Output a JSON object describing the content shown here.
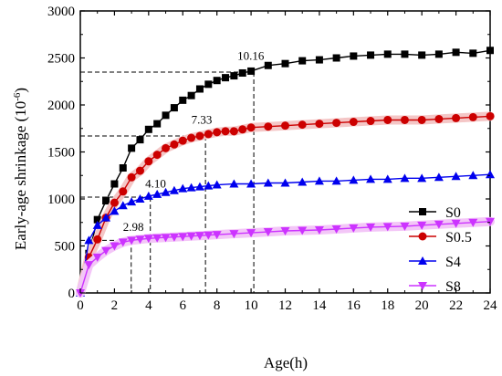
{
  "chart_data": {
    "type": "line",
    "xlabel": "Age(h)",
    "ylabel": "Early-age shrinkage (10",
    "ylabel_sup": "-6",
    "ylabel_close": ")",
    "xlim": [
      0,
      24
    ],
    "ylim": [
      0,
      3000
    ],
    "xticks": [
      0,
      2,
      4,
      6,
      8,
      10,
      12,
      14,
      16,
      18,
      20,
      22,
      24
    ],
    "yticks": [
      0,
      500,
      1000,
      1500,
      2000,
      2500,
      3000
    ],
    "xtick_labels": [
      "0",
      "2",
      "4",
      "6",
      "8",
      "10",
      "12",
      "14",
      "16",
      "18",
      "20",
      "22",
      "24"
    ],
    "ytick_labels": [
      "0",
      "500",
      "1000",
      "1500",
      "2000",
      "2500",
      "3000"
    ],
    "legend_position": "bottom-right",
    "series": [
      {
        "name": "S0",
        "color": "#000000",
        "marker": "square",
        "x": [
          0,
          0.5,
          1,
          1.5,
          2,
          2.5,
          3,
          3.5,
          4,
          4.5,
          5,
          5.5,
          6,
          6.5,
          7,
          7.5,
          8,
          8.5,
          9,
          9.5,
          10,
          11,
          12,
          13,
          14,
          15,
          16,
          17,
          18,
          19,
          20,
          21,
          22,
          23,
          24
        ],
        "y": [
          0,
          420,
          780,
          980,
          1160,
          1330,
          1540,
          1630,
          1740,
          1800,
          1890,
          1970,
          2050,
          2100,
          2170,
          2220,
          2260,
          2290,
          2310,
          2340,
          2360,
          2420,
          2440,
          2470,
          2480,
          2500,
          2520,
          2530,
          2540,
          2540,
          2530,
          2540,
          2560,
          2550,
          2580
        ]
      },
      {
        "name": "S0.5",
        "color": "#cc0000",
        "marker": "circle",
        "x": [
          0,
          0.5,
          1,
          1.5,
          2,
          2.5,
          3,
          3.5,
          4,
          4.5,
          5,
          5.5,
          6,
          6.5,
          7,
          7.5,
          8,
          8.5,
          9,
          9.5,
          10,
          11,
          12,
          13,
          14,
          15,
          16,
          17,
          18,
          19,
          20,
          21,
          22,
          23,
          24
        ],
        "y": [
          0,
          380,
          570,
          800,
          960,
          1080,
          1230,
          1300,
          1400,
          1470,
          1540,
          1580,
          1620,
          1650,
          1670,
          1690,
          1710,
          1720,
          1720,
          1740,
          1760,
          1770,
          1780,
          1790,
          1800,
          1810,
          1820,
          1830,
          1840,
          1840,
          1840,
          1850,
          1860,
          1870,
          1880
        ]
      },
      {
        "name": "S4",
        "color": "#0000ee",
        "marker": "triangle-up",
        "x": [
          0,
          0.5,
          1,
          1.5,
          2,
          2.5,
          3,
          3.5,
          4,
          4.5,
          5,
          5.5,
          6,
          6.5,
          7,
          7.5,
          8,
          9,
          10,
          11,
          12,
          13,
          14,
          15,
          16,
          17,
          18,
          19,
          20,
          21,
          22,
          23,
          24
        ],
        "y": [
          0,
          560,
          720,
          800,
          870,
          930,
          970,
          1000,
          1030,
          1050,
          1070,
          1090,
          1110,
          1120,
          1130,
          1140,
          1150,
          1160,
          1160,
          1170,
          1170,
          1180,
          1190,
          1190,
          1200,
          1210,
          1210,
          1220,
          1220,
          1230,
          1240,
          1250,
          1260
        ]
      },
      {
        "name": "S8",
        "color": "#cc33ff",
        "marker": "triangle-down",
        "x": [
          0,
          0.5,
          1,
          1.5,
          2,
          2.5,
          3,
          3.5,
          4,
          4.5,
          5,
          5.5,
          6,
          6.5,
          7,
          7.5,
          8,
          9,
          10,
          11,
          12,
          13,
          14,
          15,
          16,
          17,
          18,
          19,
          20,
          21,
          22,
          23,
          24
        ],
        "y": [
          0,
          300,
          380,
          450,
          500,
          540,
          560,
          570,
          580,
          585,
          590,
          595,
          600,
          605,
          610,
          615,
          620,
          630,
          640,
          650,
          660,
          665,
          670,
          680,
          690,
          700,
          705,
          710,
          720,
          730,
          740,
          750,
          760
        ]
      }
    ],
    "annotations": [
      {
        "label": "10.16",
        "x": 10.16,
        "y": 2350,
        "text_x": 9.2,
        "text_y": 2480
      },
      {
        "label": "7.33",
        "x": 7.33,
        "y": 1670,
        "text_x": 6.5,
        "text_y": 1800
      },
      {
        "label": "4.10",
        "x": 4.1,
        "y": 1020,
        "text_x": 3.8,
        "text_y": 1120
      },
      {
        "label": "2.98",
        "x": 2.98,
        "y": 560,
        "text_x": 2.5,
        "text_y": 660
      }
    ]
  }
}
